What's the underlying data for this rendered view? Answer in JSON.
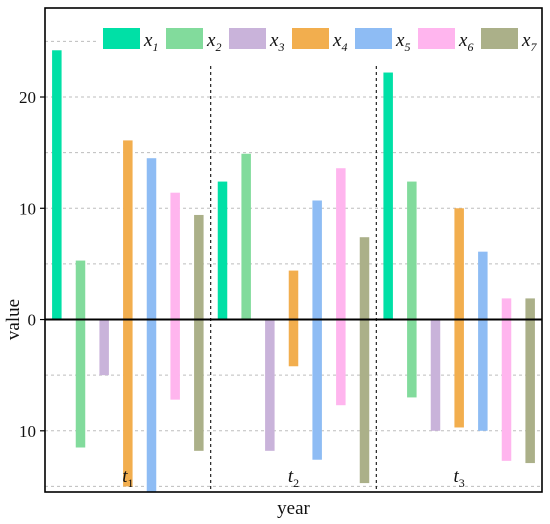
{
  "chart_data": {
    "type": "bar",
    "title": "",
    "xlabel": "year",
    "ylabel": "value",
    "ylim": [
      -15.5,
      28
    ],
    "yticks": [
      20,
      10,
      0,
      -10
    ],
    "ytick_labels": [
      "20",
      "10",
      "0",
      "10"
    ],
    "grid": true,
    "legend_position": "top",
    "categories": [
      {
        "main": "t",
        "sub": "1"
      },
      {
        "main": "t",
        "sub": "2"
      },
      {
        "main": "t",
        "sub": "3"
      }
    ],
    "series": [
      {
        "main": "x",
        "sub": "1",
        "color": "#00E0A6",
        "values": [
          24.2,
          12.4,
          22.2
        ]
      },
      {
        "main": "x",
        "sub": "2",
        "color": "#82DB9C",
        "values": [
          5.3,
          14.9,
          12.4
        ]
      },
      {
        "main": "x",
        "sub": "3",
        "color": "#C9B3DA",
        "values": [
          -5.0,
          -11.8,
          -10.0
        ]
      },
      {
        "main": "x",
        "sub": "4",
        "color": "#F2AE4E",
        "values": [
          16.1,
          4.4,
          10.0
        ]
      },
      {
        "main": "x",
        "sub": "5",
        "color": "#8EBCF4",
        "values": [
          14.5,
          10.7,
          6.1
        ]
      },
      {
        "main": "x",
        "sub": "6",
        "color": "#FFB5EE",
        "values": [
          11.4,
          13.6,
          1.9
        ]
      },
      {
        "main": "x",
        "sub": "7",
        "color": "#ABB089",
        "values": [
          9.4,
          7.4,
          1.9
        ]
      }
    ],
    "negative_ends": [
      [
        0,
        -11.5,
        0,
        -15.0,
        -15.5,
        -7.2,
        -11.8
      ],
      [
        0,
        0,
        0,
        -4.2,
        -12.6,
        -7.7,
        -14.7
      ],
      [
        0,
        -7.0,
        0,
        -9.7,
        -10.0,
        -12.7,
        -12.9
      ]
    ]
  }
}
